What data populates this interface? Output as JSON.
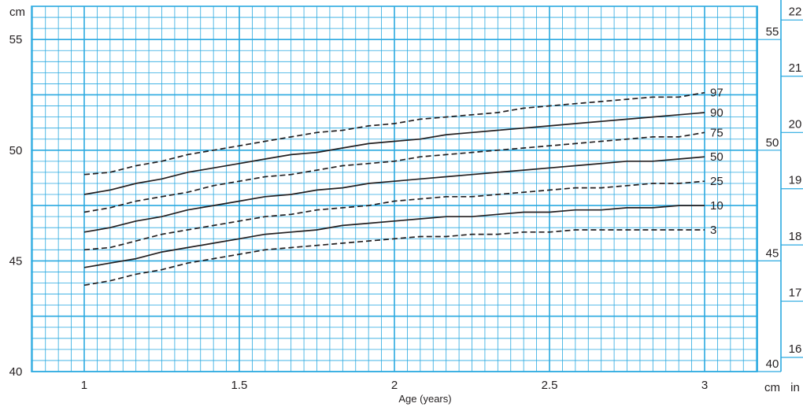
{
  "chart_data": {
    "type": "line",
    "title": "",
    "xlabel": "Age (years)",
    "ylabel": "cm",
    "xlim": [
      0.83,
      3.17
    ],
    "ylim": [
      40,
      56.5
    ],
    "x_ticks": [
      1,
      1.5,
      2,
      2.5,
      3
    ],
    "y_ticks": [
      40,
      45,
      50,
      55
    ],
    "right_cm_ticks": [
      40,
      45,
      50,
      55
    ],
    "right_in_ticks": [
      16,
      17,
      18,
      19,
      20,
      21,
      22
    ],
    "right_cm_label": "cm",
    "right_in_label": "in",
    "grid": true,
    "grid_color": "#2aa9e0",
    "line_color": "#231f20",
    "x": [
      1.0,
      1.083,
      1.167,
      1.25,
      1.333,
      1.417,
      1.5,
      1.583,
      1.667,
      1.75,
      1.833,
      1.917,
      2.0,
      2.083,
      2.167,
      2.25,
      2.333,
      2.417,
      2.5,
      2.583,
      2.667,
      2.75,
      2.833,
      2.917,
      3.0
    ],
    "series": [
      {
        "name": "97",
        "style": "dashed",
        "values": [
          48.9,
          49.0,
          49.3,
          49.5,
          49.8,
          50.0,
          50.2,
          50.4,
          50.6,
          50.8,
          50.9,
          51.1,
          51.2,
          51.4,
          51.5,
          51.6,
          51.7,
          51.9,
          52.0,
          52.1,
          52.2,
          52.3,
          52.4,
          52.4,
          52.6
        ]
      },
      {
        "name": "90",
        "style": "solid",
        "values": [
          48.0,
          48.2,
          48.5,
          48.7,
          49.0,
          49.2,
          49.4,
          49.6,
          49.8,
          49.9,
          50.1,
          50.3,
          50.4,
          50.5,
          50.7,
          50.8,
          50.9,
          51.0,
          51.1,
          51.2,
          51.3,
          51.4,
          51.5,
          51.6,
          51.7
        ]
      },
      {
        "name": "75",
        "style": "dashed",
        "values": [
          47.2,
          47.4,
          47.7,
          47.9,
          48.1,
          48.4,
          48.6,
          48.8,
          48.9,
          49.1,
          49.3,
          49.4,
          49.5,
          49.7,
          49.8,
          49.9,
          50.0,
          50.1,
          50.2,
          50.3,
          50.4,
          50.5,
          50.6,
          50.6,
          50.8
        ]
      },
      {
        "name": "50",
        "style": "solid",
        "values": [
          46.3,
          46.5,
          46.8,
          47.0,
          47.3,
          47.5,
          47.7,
          47.9,
          48.0,
          48.2,
          48.3,
          48.5,
          48.6,
          48.7,
          48.8,
          48.9,
          49.0,
          49.1,
          49.2,
          49.3,
          49.4,
          49.5,
          49.5,
          49.6,
          49.7
        ]
      },
      {
        "name": "25",
        "style": "dashed",
        "values": [
          45.5,
          45.6,
          45.9,
          46.2,
          46.4,
          46.6,
          46.8,
          47.0,
          47.1,
          47.3,
          47.4,
          47.5,
          47.7,
          47.8,
          47.9,
          47.9,
          48.0,
          48.1,
          48.2,
          48.3,
          48.3,
          48.4,
          48.5,
          48.5,
          48.6
        ]
      },
      {
        "name": "10",
        "style": "solid",
        "values": [
          44.7,
          44.9,
          45.1,
          45.4,
          45.6,
          45.8,
          46.0,
          46.2,
          46.3,
          46.4,
          46.6,
          46.7,
          46.8,
          46.9,
          47.0,
          47.0,
          47.1,
          47.2,
          47.2,
          47.3,
          47.3,
          47.4,
          47.4,
          47.5,
          47.5
        ]
      },
      {
        "name": "3",
        "style": "dashed",
        "values": [
          43.9,
          44.1,
          44.4,
          44.6,
          44.9,
          45.1,
          45.3,
          45.5,
          45.6,
          45.7,
          45.8,
          45.9,
          46.0,
          46.1,
          46.1,
          46.2,
          46.2,
          46.3,
          46.3,
          46.4,
          46.4,
          46.4,
          46.4,
          46.4,
          46.4
        ]
      }
    ]
  }
}
